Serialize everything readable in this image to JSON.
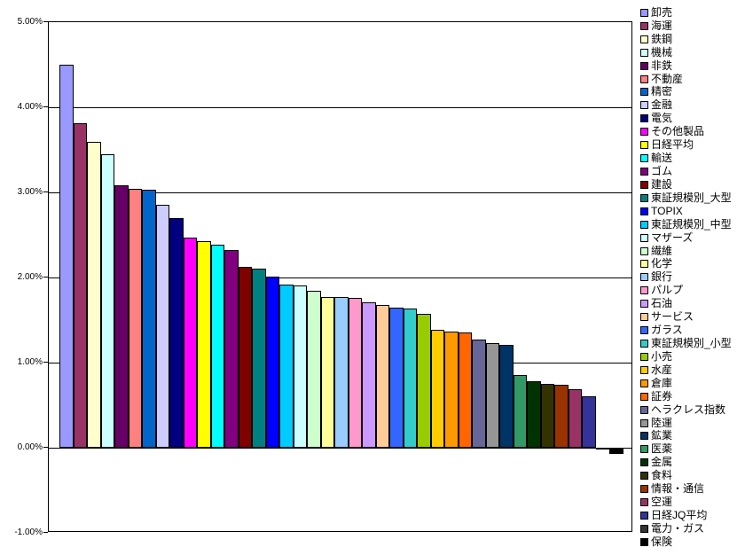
{
  "page": {
    "background_color": "#FFFFFF",
    "text_color": "#000000"
  },
  "chart_data": {
    "type": "bar",
    "title": "",
    "xlabel": "",
    "ylabel": "",
    "ylim": [
      -1,
      5
    ],
    "ytick_step": 1,
    "ytick_labels": [
      "5.00%",
      "4.00%",
      "3.00%",
      "2.00%",
      "1.00%",
      "0.00%",
      "-1.00%"
    ],
    "grid": true,
    "legend_position": "right",
    "bar_border_color": "#000000",
    "categories": [
      "卸売",
      "海運",
      "鉄鋼",
      "機械",
      "非鉄",
      "不動産",
      "精密",
      "金融",
      "電気",
      "その他製品",
      "日経平均",
      "輸送",
      "ゴム",
      "建設",
      "東証規模別_大型",
      "TOPIX",
      "東証規模別_中型",
      "マザーズ",
      "繊維",
      "化学",
      "銀行",
      "パルプ",
      "石油",
      "サービス",
      "ガラス",
      "東証規模別_小型",
      "小売",
      "水産",
      "倉庫",
      "証券",
      "ヘラクレス指数",
      "陸運",
      "鉱業",
      "医薬",
      "金属",
      "食料",
      "情報・通信",
      "空運",
      "日経JQ平均",
      "電力・ガス",
      "保険"
    ],
    "values": [
      4.5,
      3.81,
      3.59,
      3.45,
      3.08,
      3.04,
      3.03,
      2.85,
      2.7,
      2.47,
      2.43,
      2.39,
      2.32,
      2.13,
      2.1,
      2.01,
      1.92,
      1.91,
      1.84,
      1.77,
      1.77,
      1.76,
      1.71,
      1.68,
      1.65,
      1.64,
      1.57,
      1.39,
      1.36,
      1.35,
      1.27,
      1.23,
      1.21,
      0.85,
      0.78,
      0.75,
      0.74,
      0.69,
      0.6,
      -0.02,
      -0.07
    ],
    "colors": [
      "#9999FF",
      "#993366",
      "#FFFFCC",
      "#CCFFFF",
      "#660066",
      "#FF8080",
      "#0066CC",
      "#CCCCFF",
      "#000080",
      "#FF00FF",
      "#FFFF00",
      "#00FFFF",
      "#800080",
      "#800000",
      "#008080",
      "#0000FF",
      "#00CCFF",
      "#CCFFFF",
      "#CCFFCC",
      "#FFFF99",
      "#99CCFF",
      "#FF99CC",
      "#CC99FF",
      "#FFCC99",
      "#3366FF",
      "#33CCCC",
      "#99CC00",
      "#FFCC00",
      "#FF9900",
      "#FF6600",
      "#666699",
      "#969696",
      "#003366",
      "#339966",
      "#003300",
      "#333300",
      "#993300",
      "#993366",
      "#333399",
      "#333333",
      "#000000"
    ]
  }
}
